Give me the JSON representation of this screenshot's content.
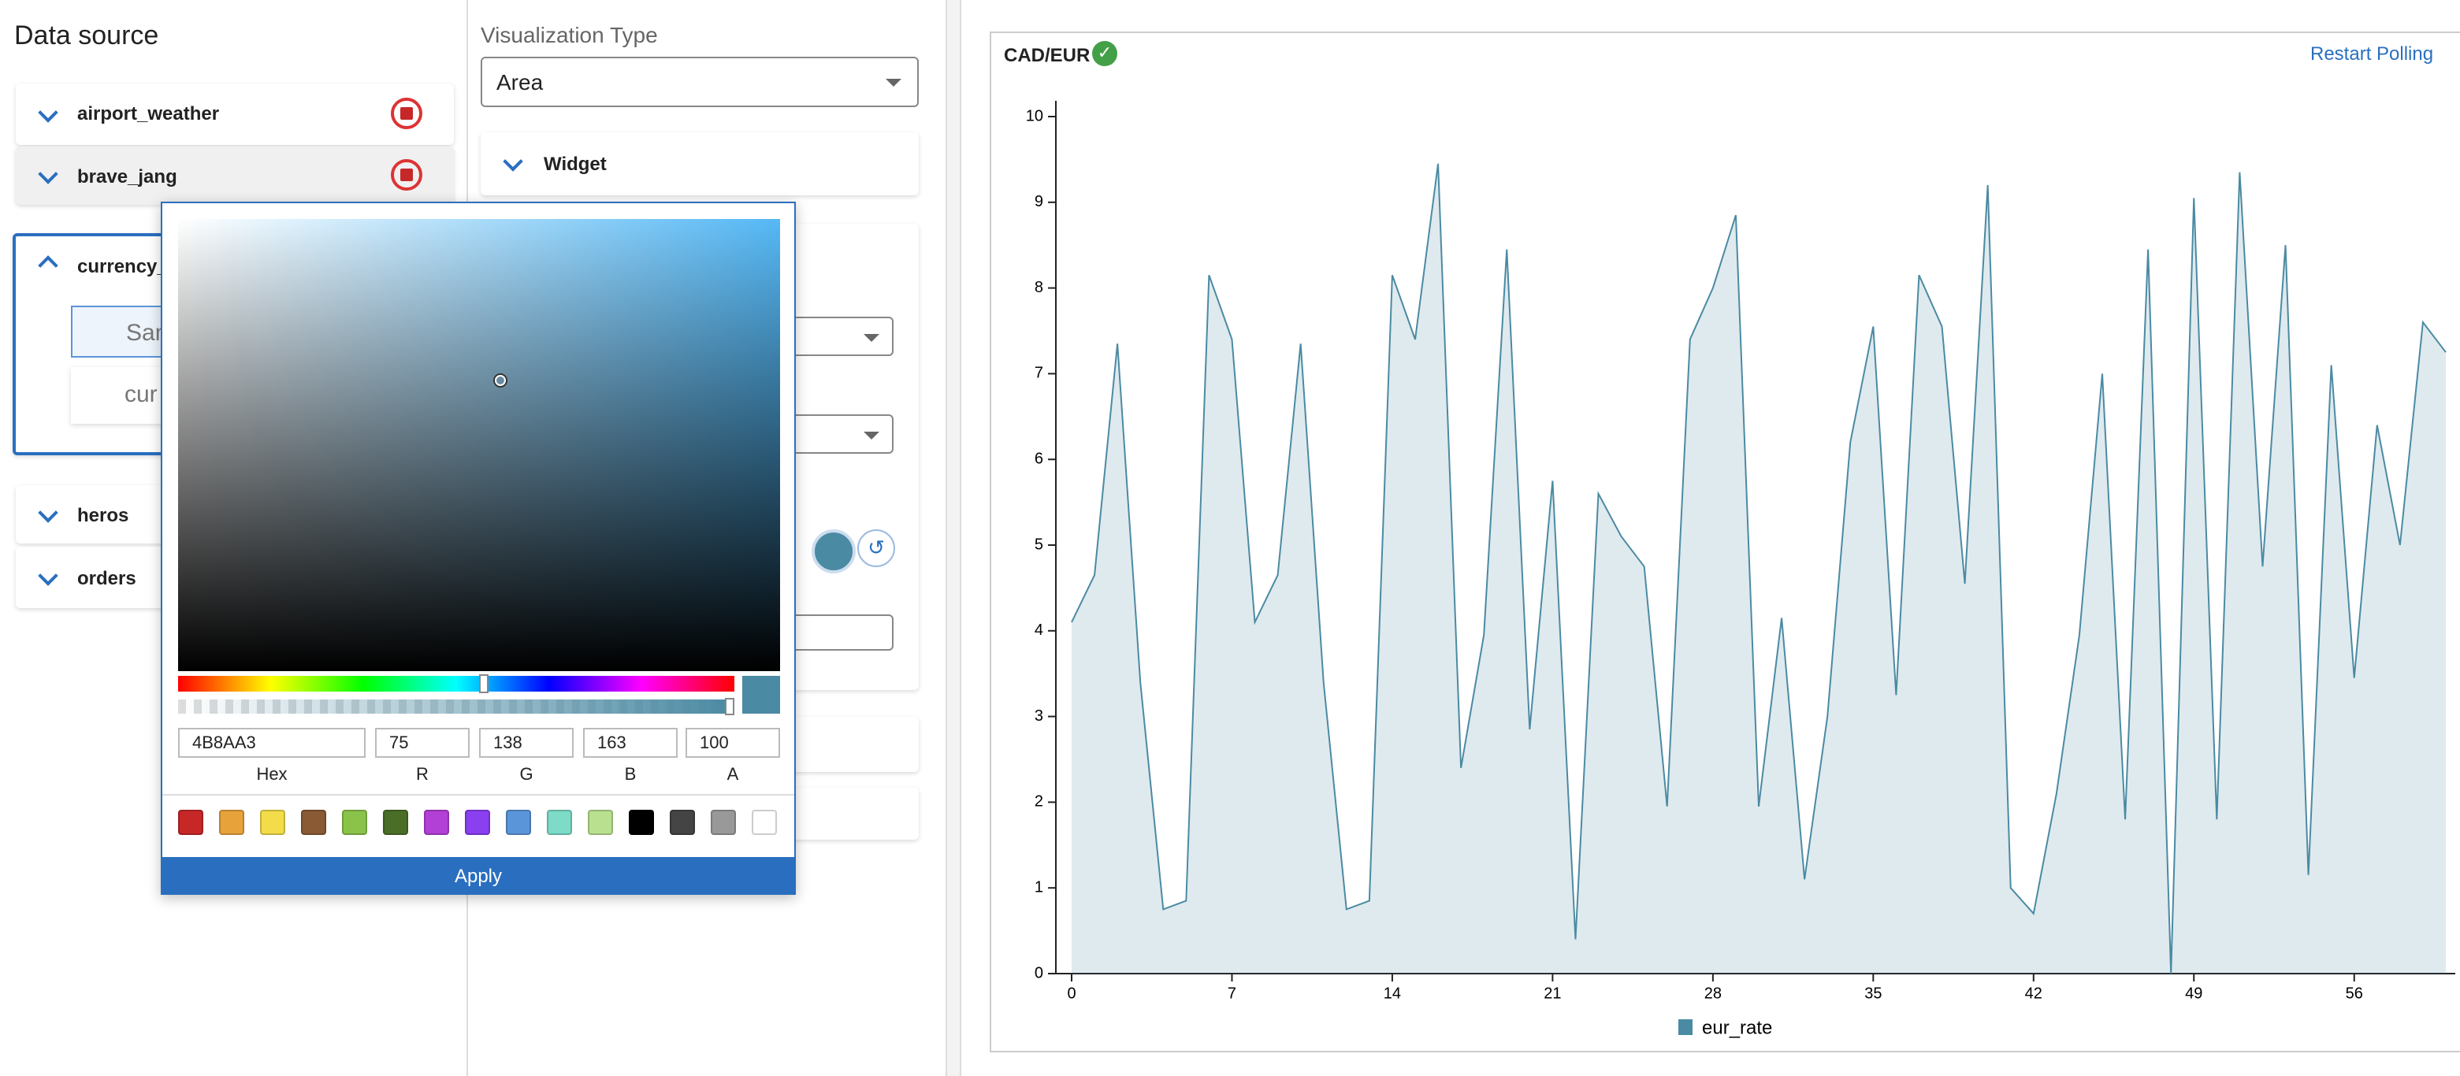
{
  "data_source_panel": {
    "title": "Data source",
    "sources": [
      "airport_weather",
      "brave_jang",
      "currency_",
      "heros",
      "orders"
    ],
    "currency_children": [
      "Sam",
      "cur"
    ]
  },
  "visualization_panel": {
    "type_label": "Visualization Type",
    "type_value": "Area",
    "widget_section": "Widget"
  },
  "color_picker": {
    "hex": "4B8AA3",
    "r": "75",
    "g": "138",
    "b": "163",
    "a": "100",
    "labels": [
      "Hex",
      "R",
      "G",
      "B",
      "A"
    ],
    "swatches": [
      "#c62828",
      "#e8a23a",
      "#f2dc4a",
      "#8a5a34",
      "#8bc34a",
      "#4a6e28",
      "#b23fd6",
      "#8a3ff0",
      "#5b95d9",
      "#7ddbc7",
      "#b9e08f",
      "#000000",
      "#444444",
      "#999999",
      "#ffffff"
    ],
    "apply": "Apply"
  },
  "chart_data": {
    "type": "area",
    "title": "CAD/EUR",
    "action": "Restart Polling",
    "x": [
      0,
      1,
      2,
      3,
      4,
      5,
      6,
      7,
      8,
      9,
      10,
      11,
      12,
      13,
      14,
      15,
      16,
      17,
      18,
      19,
      20,
      21,
      22,
      23,
      24,
      25,
      26,
      27,
      28,
      29,
      30,
      31,
      32,
      33,
      34,
      35,
      36,
      37,
      38,
      39,
      40,
      41,
      42,
      43,
      44,
      45,
      46,
      47,
      48,
      49,
      50,
      51,
      52,
      53,
      54,
      55,
      56,
      57,
      58,
      59,
      60
    ],
    "series": [
      {
        "name": "eur_rate",
        "color": "#4b8aa3",
        "values": [
          4.1,
          4.65,
          7.35,
          3.4,
          0.75,
          0.85,
          8.15,
          7.4,
          4.1,
          4.65,
          7.35,
          3.4,
          0.75,
          0.85,
          8.15,
          7.4,
          9.45,
          2.4,
          3.95,
          8.45,
          2.85,
          5.75,
          0.4,
          5.6,
          5.1,
          4.75,
          1.95,
          7.4,
          8.0,
          8.85,
          1.95,
          4.15,
          1.1,
          3.0,
          6.2,
          7.55,
          3.25,
          8.15,
          7.55,
          4.55,
          9.2,
          1.0,
          0.7,
          2.1,
          3.95,
          7.0,
          1.8,
          8.45,
          0.0,
          9.05,
          1.8,
          9.35,
          4.75,
          8.5,
          1.15,
          7.1,
          3.45,
          6.4,
          5.0,
          7.6,
          7.25
        ]
      }
    ],
    "xlim": [
      0,
      60
    ],
    "xticks": [
      0,
      7,
      14,
      21,
      28,
      35,
      42,
      49,
      56
    ],
    "ylim": [
      0,
      10
    ],
    "yticks": [
      0,
      1,
      2,
      3,
      4,
      5,
      6,
      7,
      8,
      9,
      10
    ]
  }
}
